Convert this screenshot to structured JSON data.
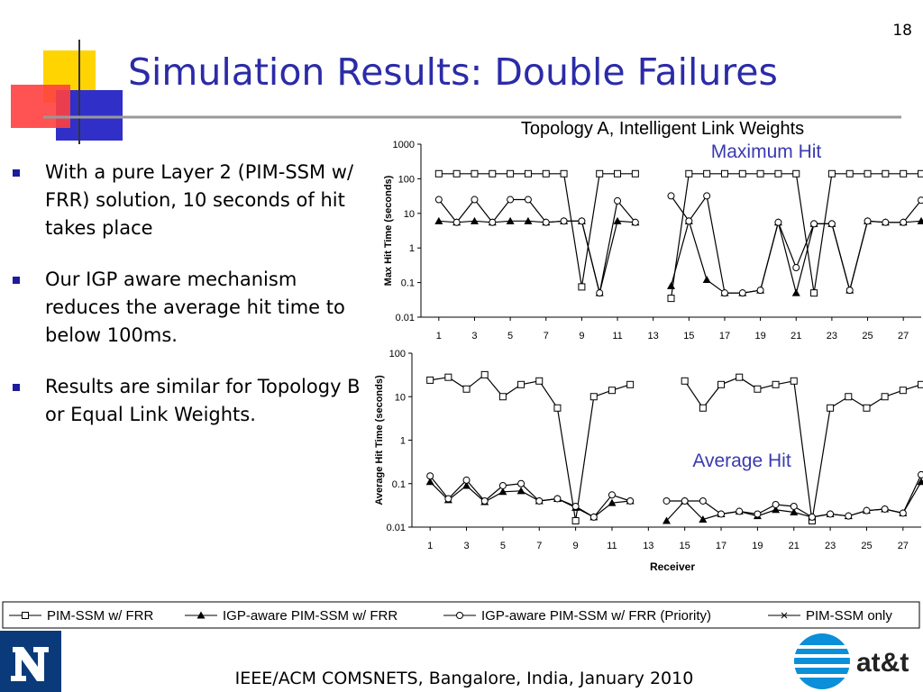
{
  "slide_number": "18",
  "title": "Simulation Results: Double Failures",
  "bullets": [
    "With a pure Layer 2 (PIM-SSM w/ FRR) solution, 10 seconds of hit takes place",
    "Our IGP aware mechanism reduces the average hit time to below 100ms.",
    "Results are similar for Topology B or Equal Link Weights."
  ],
  "footer": "IEEE/ACM COMSNETS, Bangalore, India, January 2010",
  "logo_text": "at&t",
  "chart_data": [
    {
      "type": "line",
      "title": "Topology A, Intelligent Link Weights",
      "annotation": "Maximum Hit",
      "y_label": "Max Hit Time (seconds)",
      "ylog": true,
      "x": [
        1,
        2,
        3,
        4,
        5,
        6,
        7,
        8,
        9,
        10,
        11,
        12,
        13,
        14,
        15,
        16,
        17,
        18,
        19,
        20,
        21,
        22,
        23,
        24,
        25,
        26,
        27,
        28
      ],
      "xlim": [
        0,
        28
      ],
      "xticks": [
        1,
        3,
        5,
        7,
        9,
        11,
        13,
        15,
        17,
        19,
        21,
        23,
        25,
        27
      ],
      "ylim": [
        0.01,
        1000
      ],
      "yticks": [
        0.01,
        0.1,
        1,
        10,
        100,
        1000
      ],
      "series": [
        {
          "name": "PIM-SSM w/ FRR",
          "color": "#000000",
          "marker": "square",
          "values": [
            140,
            140,
            140,
            140,
            140,
            140,
            140,
            140,
            0.075,
            140,
            140,
            140,
            null,
            0.035,
            140,
            140,
            140,
            140,
            140,
            140,
            140,
            0.05,
            140,
            140,
            140,
            140,
            140,
            140
          ]
        },
        {
          "name": "IGP-aware PIM-SSM w/ FRR",
          "color": "#000000",
          "marker": "triangle",
          "values": [
            6,
            5.5,
            6,
            5.5,
            6,
            6,
            5.5,
            6,
            6,
            0.05,
            6,
            5.5,
            null,
            0.08,
            6,
            0.12,
            0.05,
            0.05,
            0.06,
            5.5,
            0.05,
            5,
            5,
            0.06,
            6,
            5.5,
            5.5,
            6
          ]
        },
        {
          "name": "IGP-aware PIM-SSM w/ FRR (Priority)",
          "color": "#000000",
          "marker": "circle",
          "values": [
            25,
            5.5,
            25,
            5.5,
            25,
            25,
            5.5,
            6,
            6,
            0.05,
            23,
            5.5,
            null,
            32,
            6,
            32,
            0.05,
            0.05,
            0.06,
            5.5,
            0.27,
            5,
            5,
            0.06,
            6,
            5.5,
            5.5,
            24
          ]
        },
        {
          "name": "PIM-SSM only",
          "color": "#000000",
          "marker": "x",
          "values": [
            null,
            null,
            null,
            null,
            null,
            null,
            null,
            null,
            null,
            null,
            null,
            null,
            null,
            null,
            null,
            null,
            null,
            null,
            null,
            null,
            null,
            null,
            null,
            null,
            null,
            null,
            null,
            null
          ]
        }
      ]
    },
    {
      "type": "line",
      "annotation": "Average Hit",
      "y_label": "Average Hit Time (seconds)",
      "x_label": "Receiver",
      "ylog": true,
      "x": [
        1,
        2,
        3,
        4,
        5,
        6,
        7,
        8,
        9,
        10,
        11,
        12,
        13,
        14,
        15,
        16,
        17,
        18,
        19,
        20,
        21,
        22,
        23,
        24,
        25,
        26,
        27,
        28
      ],
      "xlim": [
        0,
        28
      ],
      "xticks": [
        1,
        3,
        5,
        7,
        9,
        11,
        13,
        15,
        17,
        19,
        21,
        23,
        25,
        27
      ],
      "ylim": [
        0.01,
        100
      ],
      "yticks": [
        0.01,
        0.1,
        1,
        10,
        100
      ],
      "series": [
        {
          "color": "#000000",
          "marker": "square",
          "values": [
            24,
            28,
            15,
            32,
            10,
            19,
            23,
            5.5,
            0.014,
            10,
            14,
            19,
            null,
            null,
            23,
            5.5,
            19,
            28,
            15,
            19,
            23,
            0.014,
            5.5,
            10,
            5.5,
            10,
            14,
            19
          ]
        },
        {
          "color": "#000000",
          "marker": "triangle",
          "values": [
            0.11,
            0.042,
            0.09,
            0.038,
            0.065,
            0.068,
            0.04,
            0.045,
            0.028,
            0.017,
            0.036,
            0.04,
            null,
            0.014,
            0.04,
            0.015,
            0.02,
            0.023,
            0.018,
            0.025,
            0.022,
            0.017,
            0.02,
            0.018,
            0.024,
            0.026,
            0.021,
            0.11
          ]
        },
        {
          "color": "#000000",
          "marker": "circle",
          "values": [
            0.15,
            0.045,
            0.12,
            0.04,
            0.09,
            0.1,
            0.04,
            0.045,
            0.03,
            0.017,
            0.055,
            0.04,
            null,
            0.04,
            0.04,
            0.04,
            0.02,
            0.023,
            0.02,
            0.033,
            0.03,
            0.017,
            0.02,
            0.018,
            0.024,
            0.026,
            0.021,
            0.16
          ]
        },
        {
          "color": "#000000",
          "marker": "x",
          "values": [
            null,
            null,
            null,
            null,
            null,
            null,
            null,
            null,
            null,
            null,
            null,
            null,
            null,
            null,
            null,
            null,
            null,
            null,
            null,
            null,
            null,
            null,
            null,
            null,
            null,
            null,
            null,
            null
          ]
        }
      ]
    }
  ]
}
